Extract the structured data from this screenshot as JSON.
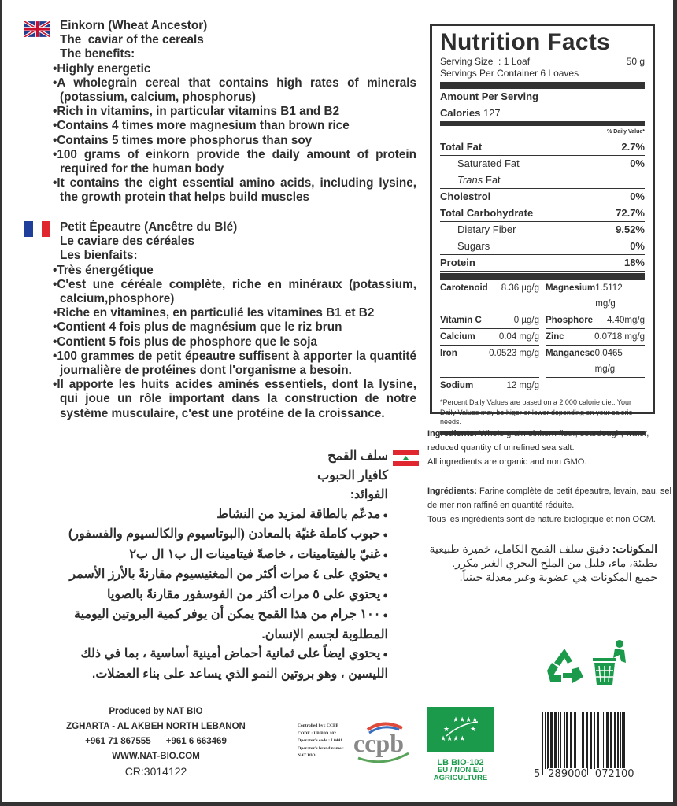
{
  "english": {
    "flag": "uk-flag",
    "title": "Einkorn (Wheat Ancestor)",
    "subtitle": "The  caviar of the cereals",
    "benefits_label": "The benefits:",
    "bullets": [
      "Highly energetic",
      "A wholegrain cereal that contains high rates of minerals (potassium, calcium, phosphorus)",
      "Rich in vitamins, in particular vitamins B1 and B2",
      "Contains 4 times more magnesium than brown rice",
      "Contains 5 times more phosphorus than soy",
      "100 grams of einkorn provide the daily amount of protein required for the human body",
      "It contains the eight essential amino acids, including lysine, the growth protein that helps build muscles"
    ]
  },
  "french": {
    "flag": "france-flag",
    "title": "Petit Épeautre (Ancêtre du Blé)",
    "subtitle": "Le caviare des céréales",
    "benefits_label": "Les bienfaits:",
    "bullets": [
      "Très énergétique",
      "C'est une céréale  complète, riche en minéraux (potassium, calcium,phosphore)",
      "Riche en vitamines, en particulié les vitamines B1 et B2",
      "Contient 4 fois plus de magnésium que le riz brun",
      "Contient 5 fois plus de phosphore que le soja",
      "100 grammes de petit épeautre suffisent à apporter la quantité journalière de  protéines dont l'organisme a besoin.",
      "Il apporte les huits acides aminés essentiels, dont la lysine, qui joue un rôle important dans la construction de notre système musculaire, c'est une protéine de la croissance."
    ]
  },
  "arabic": {
    "flag": "lebanon-flag",
    "title": "سلف القمح",
    "subtitle": "كافيار الحبوب",
    "benefits_label": "الفوائد:",
    "bullets": [
      "مدعّم بالطاقة لمزيد من النشاط",
      "حبوب كاملة غنيّة بالمعادن (البوتاسيوم والكالسيوم والفسفور)",
      "غنيّ بالفيتامينات ، خاصةً فيتامينات ال ب١ ال ب٢",
      "يحتوي على ٤ مرات أكثر من المغنيسيوم مقارنةً بالأرز الأسمر",
      "يحتوي على ٥ مرات أكثر من الفوسفور مقارنةً بالصويا",
      "١٠٠ جرام من هذا القمح يمكن أن يوفر كمية البروتين اليومية المطلوبة لجسم الإنسان.",
      "يحتوي ايضاً على ثمانية أحماض أمينية أساسية ، بما في ذلك الليسين ، وهو بروتين النمو الذي يساعد على بناء العضلات."
    ]
  },
  "nutrition": {
    "title": "Nutrition Facts",
    "serving_size_label": "Serving Size  : 1 Loaf",
    "serving_size_value": "50 g",
    "servings_label": "Servings Per Container  6 Loaves",
    "amount_label": "Amount Per Serving",
    "calories_label": "Calories",
    "calories_value": "127",
    "dv_label": "% Daily Value*",
    "rows": [
      {
        "label": "Total Fat",
        "value": "2.7%"
      },
      {
        "label": "Saturated Fat",
        "value": "0%"
      },
      {
        "label": "Trans",
        "label2": " Fat",
        "value": ""
      },
      {
        "label": "Cholestrol",
        "value": "0%"
      },
      {
        "label": "Total Carbohydrate",
        "value": "72.7%"
      },
      {
        "label": "Dietary Fiber",
        "value": "9.52%"
      },
      {
        "label": "Sugars",
        "value": "0%"
      },
      {
        "label": "Protein",
        "value": "18%"
      }
    ],
    "minerals": [
      {
        "label": "Carotenoid",
        "value": "8.36 µg/g"
      },
      {
        "label": "Magnesium",
        "value": "1.5112 mg/g"
      },
      {
        "label": "Vitamin C",
        "value": "0 µg/g"
      },
      {
        "label": "Phosphore",
        "value": "4.40mg/g"
      },
      {
        "label": "Calcium",
        "value": "0.04 mg/g"
      },
      {
        "label": "Zinc",
        "value": "0.0718 mg/g"
      },
      {
        "label": "Iron",
        "value": "0.0523 mg/g"
      },
      {
        "label": "Manganese",
        "value": "0.0465 mg/g"
      },
      {
        "label": "Sodium",
        "value": "12 mg/g"
      }
    ],
    "footnote": "*Percent Daily Values are based on a 2,000 calorie diet. Your Daily Values may be higer or lower depending on your calorie needs."
  },
  "ingredients": {
    "en_label": "Ingredients:",
    "en_text": " Whole grain einkorn flour, sourdough, water, reduced quantity of unrefined sea salt.",
    "en_note": "All ingredients are organic and non GMO.",
    "fr_label": "Ingrédients:",
    "fr_text": " Farine complète de petit épeautre, levain, eau, sel de mer non raffiné en quantité réduite.",
    "fr_note": "Tous les ingrédients sont de nature biologique et non OGM.",
    "ar_label": "المكونات:",
    "ar_text": " دقيق سلف القمح الكامل، خميرة طبيعية بطيئة، ماء، قليل من الملح البحري الغير مكرر. جميع المكونات هي عضوية وغير معدلة جينياً."
  },
  "producer": {
    "line1": "Produced by NAT BIO",
    "line2": "ZGHARTA - AL AKBEH NORTH LEBANON",
    "phone1": "+961 71 867555",
    "phone2": "+961 6 663469",
    "website": "WWW.NAT-BIO.COM",
    "cr": "CR:3014122"
  },
  "control": {
    "lines": [
      "Controlled by : CCPB",
      "CODE : LB BIO 102",
      "Operator's code : L0441",
      "Operator's brand name :",
      "NAT BIO"
    ],
    "logo": "ccpb"
  },
  "eu_label": {
    "code": "LB BIO-102",
    "line2": "EU / NON EU",
    "line3": "AGRICULTURE",
    "color": "#1a9a4a"
  },
  "barcode": {
    "digits": [
      "5",
      "289000",
      "072100"
    ]
  },
  "icons": [
    "recycle-icon",
    "bin-icon"
  ]
}
